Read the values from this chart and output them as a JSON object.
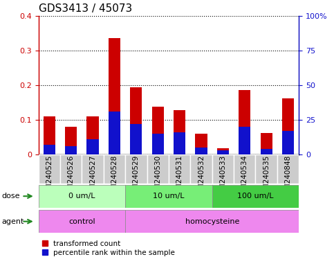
{
  "title": "GDS3413 / 45073",
  "samples": [
    "GSM240525",
    "GSM240526",
    "GSM240527",
    "GSM240528",
    "GSM240529",
    "GSM240530",
    "GSM240531",
    "GSM240532",
    "GSM240533",
    "GSM240534",
    "GSM240535",
    "GSM240848"
  ],
  "transformed_count": [
    0.11,
    0.08,
    0.11,
    0.335,
    0.193,
    0.138,
    0.127,
    0.06,
    0.018,
    0.185,
    0.062,
    0.162
  ],
  "percentile_rank_pct": [
    7,
    6,
    11,
    31,
    22,
    15,
    16,
    5,
    3,
    20,
    4,
    17
  ],
  "red_color": "#cc0000",
  "blue_color": "#1111cc",
  "bar_width": 0.55,
  "ylim_left": [
    0,
    0.4
  ],
  "ylim_right": [
    0,
    100
  ],
  "yticks_left": [
    0,
    0.1,
    0.2,
    0.3,
    0.4
  ],
  "ytick_labels_left": [
    "0",
    "0.1",
    "0.2",
    "0.3",
    "0.4"
  ],
  "yticks_right": [
    0,
    25,
    50,
    75,
    100
  ],
  "ytick_labels_right": [
    "0",
    "25",
    "50",
    "75",
    "100%"
  ],
  "dose_groups": [
    {
      "label": "0 um/L",
      "start": 0,
      "end": 4,
      "color": "#bbffbb"
    },
    {
      "label": "10 um/L",
      "start": 4,
      "end": 8,
      "color": "#77ee77"
    },
    {
      "label": "100 um/L",
      "start": 8,
      "end": 12,
      "color": "#44cc44"
    }
  ],
  "agent_groups": [
    {
      "label": "control",
      "start": 0,
      "end": 4,
      "color": "#ee88ee"
    },
    {
      "label": "homocysteine",
      "start": 4,
      "end": 12,
      "color": "#ee88ee"
    }
  ],
  "dose_label": "dose",
  "agent_label": "agent",
  "legend_red": "transformed count",
  "legend_blue": "percentile rank within the sample",
  "grid_color": "#000000",
  "xtick_bg": "#cccccc",
  "title_fontsize": 11,
  "tick_fontsize": 8,
  "small_fontsize": 7.5,
  "row_fontsize": 8
}
